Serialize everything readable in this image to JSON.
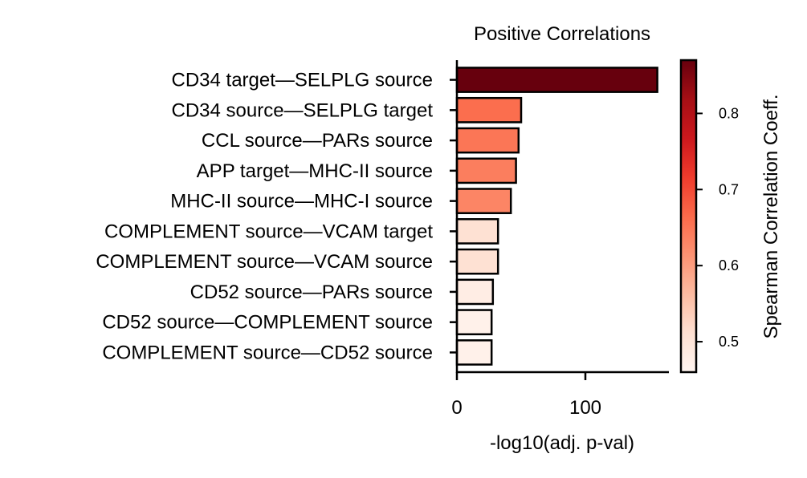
{
  "chart_data": {
    "type": "bar",
    "orientation": "horizontal",
    "title": "Positive Correlations",
    "xlabel": "-log10(adj. p-val)",
    "ylabel": "",
    "xlim": [
      0,
      165
    ],
    "xticks": [
      0,
      100
    ],
    "categories": [
      "CD34 target—SELPLG source",
      "CD34 source—SELPLG target",
      "CCL source—PARs source",
      "APP target—MHC-II source",
      "MHC-II source—MHC-I source",
      "COMPLEMENT source—VCAM target",
      "COMPLEMENT source—VCAM source",
      "CD52 source—PARs source",
      "CD52 source—COMPLEMENT source",
      "COMPLEMENT source—CD52 source"
    ],
    "values": [
      156,
      50,
      48,
      46,
      42,
      32,
      32,
      28,
      27,
      27
    ],
    "spearman_coeff": [
      0.87,
      0.66,
      0.65,
      0.64,
      0.63,
      0.51,
      0.51,
      0.48,
      0.47,
      0.47
    ],
    "colorbar": {
      "label": "Spearman Correlation Coeff.",
      "range": [
        0.46,
        0.87
      ],
      "ticks": [
        0.5,
        0.6,
        0.7,
        0.8
      ],
      "tick_labels": [
        "0.5",
        "0.6",
        "0.7",
        "0.8"
      ],
      "colormap": "Reds"
    },
    "grid": false,
    "legend": "none"
  }
}
